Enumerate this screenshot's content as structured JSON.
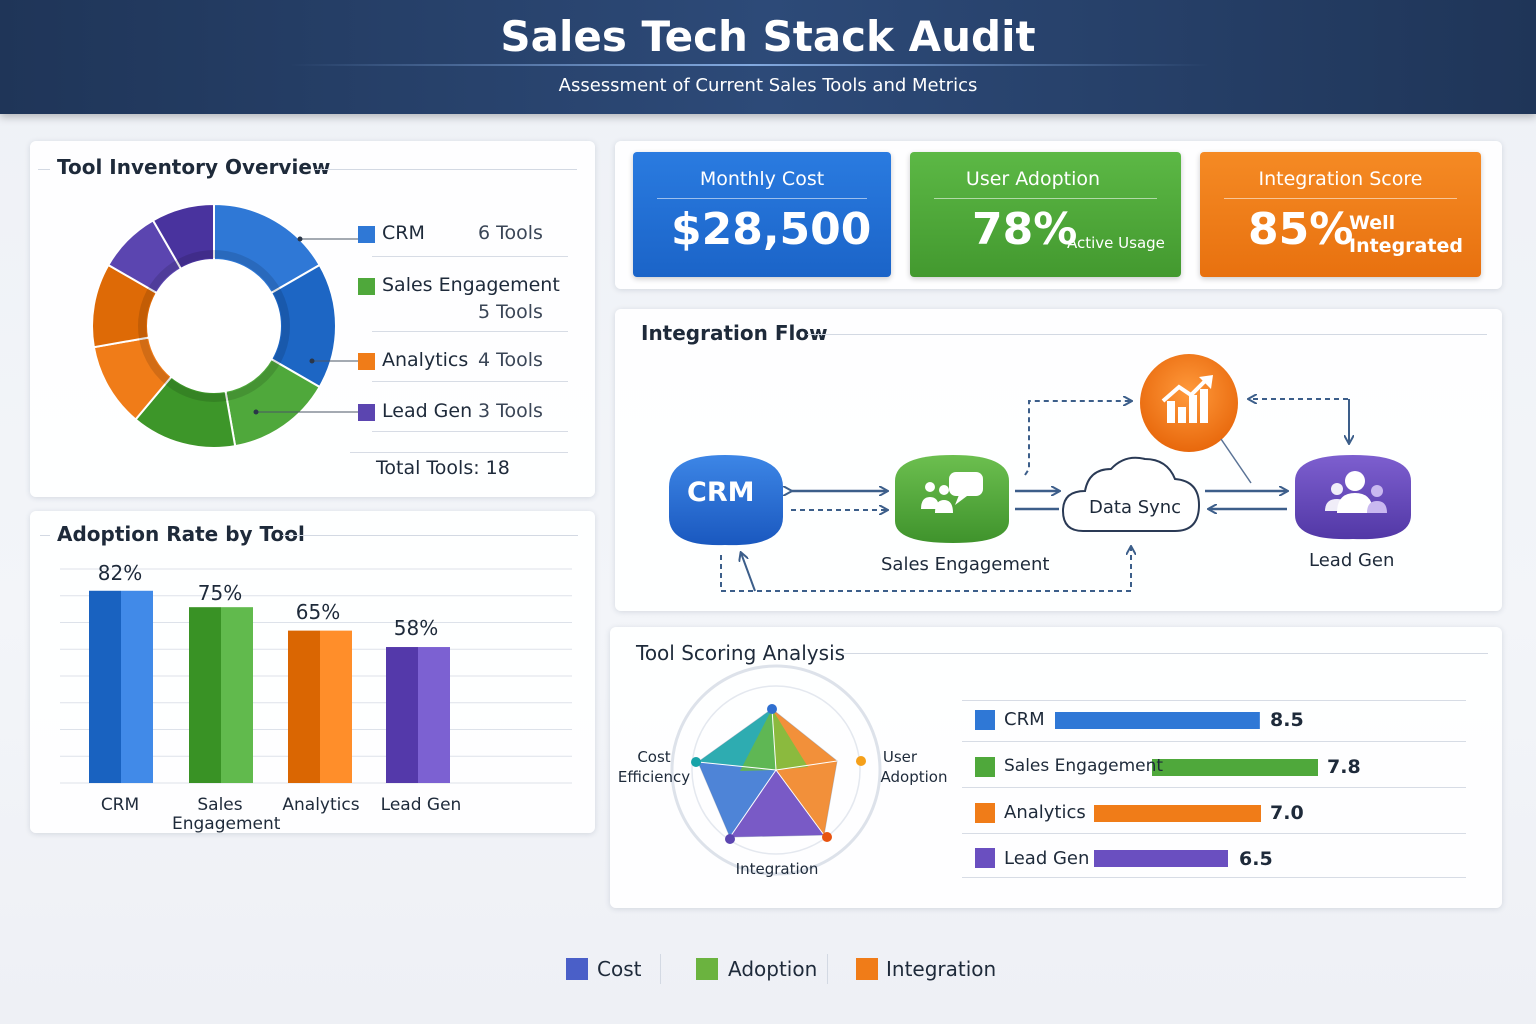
{
  "header": {
    "title": "Sales Tech Stack Audit",
    "subtitle": "Assessment of Current Sales Tools and Metrics"
  },
  "inventory": {
    "title": "Tool Inventory Overview",
    "items": [
      {
        "name": "CRM",
        "count": "6 Tools",
        "value": 6,
        "color": "#2f78d6"
      },
      {
        "name": "Sales Engagement",
        "count": "5 Tools",
        "value": 5,
        "color": "#4fa83b"
      },
      {
        "name": "Analytics",
        "count": "4 Tools",
        "value": 4,
        "color": "#f07c18"
      },
      {
        "name": "Lead Gen",
        "count": "3 Tools",
        "value": 3,
        "color": "#5b45b0"
      }
    ],
    "total": "Total Tools: 18"
  },
  "kpis": [
    {
      "label": "Monthly Cost",
      "value": "$28,500",
      "sub": "",
      "color": "#1f6fd2"
    },
    {
      "label": "User Adoption",
      "value": "78%",
      "sub": "Active Usage",
      "color": "#4ea93a"
    },
    {
      "label": "Integration Score",
      "value": "85%",
      "sub_line1": "Well",
      "sub_line2": "Integrated",
      "color": "#f07c18"
    }
  ],
  "flow": {
    "title": "Integration Flow",
    "crm": "CRM",
    "sales_engagement": "Sales Engagement",
    "data_sync": "Data Sync",
    "lead_gen": "Lead Gen",
    "icons": {
      "analytics": "chart-growth-icon",
      "engagement": "chat-users-icon",
      "leadgen": "users-icon",
      "sync": "cloud-icon"
    }
  },
  "adoption": {
    "title": "Adoption Rate by Tool",
    "chart_data": {
      "type": "bar",
      "categories": [
        "CRM",
        "Sales Engagement",
        "Analytics",
        "Lead Gen"
      ],
      "values": [
        82,
        75,
        65,
        58
      ],
      "labels": [
        "82%",
        "75%",
        "65%",
        "58%"
      ],
      "colors": [
        "#2f78d6",
        "#4fa83b",
        "#f07c18",
        "#6a4fc0"
      ],
      "ylim": [
        0,
        100
      ],
      "grid": true
    },
    "cat_line1": [
      "CRM",
      "Sales",
      "Analytics",
      "Lead Gen"
    ],
    "cat_line2": [
      "",
      "Engagement",
      "",
      ""
    ]
  },
  "scoring": {
    "title": "Tool Scoring Analysis",
    "radar_axes": {
      "cost_line1": "Cost",
      "cost_line2": "Efficiency",
      "user_line1": "User",
      "user_line2": "Adoption",
      "integration": "Integration"
    },
    "chart_data": {
      "type": "bar",
      "categories": [
        "CRM",
        "Sales Engagement",
        "Analytics",
        "Lead Gen"
      ],
      "values": [
        8.5,
        7.8,
        7.0,
        6.5
      ],
      "labels": [
        "8.5",
        "7.8",
        "7.0",
        "6.5"
      ],
      "colors": [
        "#2f78d6",
        "#4fa83b",
        "#f07c18",
        "#6a4fc0"
      ]
    }
  },
  "legend": [
    {
      "label": "Cost",
      "color": "#4a5fc8"
    },
    {
      "label": "Adoption",
      "color": "#6bb33f"
    },
    {
      "label": "Integration",
      "color": "#f07c18"
    }
  ]
}
